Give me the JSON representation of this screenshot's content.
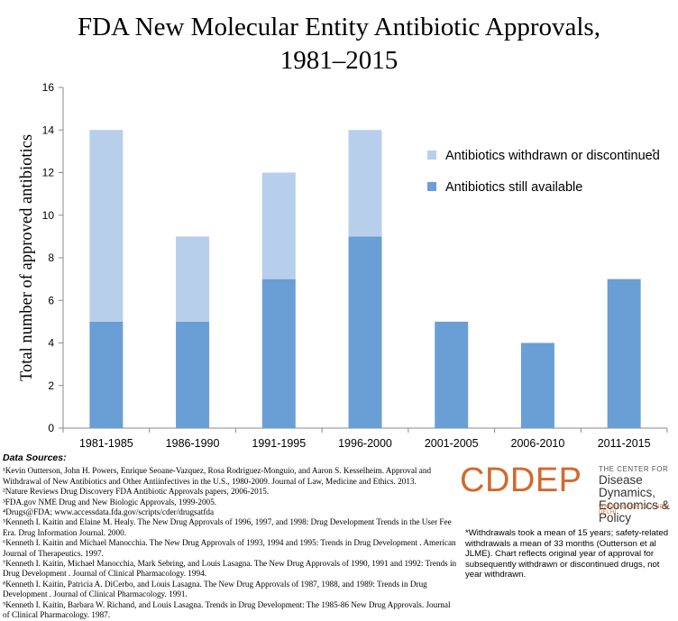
{
  "chart_data": {
    "type": "bar",
    "title": "FDA New Molecular Entity Antibiotic Approvals, 1981–2015",
    "title_line1": "FDA New Molecular Entity Antibiotic Approvals,",
    "title_line2": "1981–2015",
    "ylabel": "Total number of approved antibiotics",
    "xlabel": "",
    "ylim": [
      0,
      16
    ],
    "yticks": [
      "0",
      "2",
      "4",
      "6",
      "8",
      "10",
      "12",
      "14",
      "16"
    ],
    "categories": [
      "1981-1985",
      "1986-1990",
      "1991-1995",
      "1996-2000",
      "2001-2005",
      "2006-2010",
      "2011-2015"
    ],
    "stacked": true,
    "series": [
      {
        "name": "Antibiotics still available",
        "color": "#6a9fd6",
        "values": [
          5,
          5,
          7,
          9,
          5,
          4,
          7
        ]
      },
      {
        "name": "Antibiotics withdrawn or discontinued",
        "marker": "*",
        "color": "#b7cfea",
        "values": [
          9,
          4,
          5,
          5,
          0,
          0,
          0
        ]
      }
    ],
    "legend_position": "top-right",
    "grid": false
  },
  "sources": {
    "header": "Data Sources:",
    "items": [
      "¹Kevin Outterson, John H. Powers, Enrique Seoane-Vazquez, Rosa Rodriguez-Monguio, and Aaron S. Kesselheim. Approval and Withdrawal of New Antibiotics and Other Antiinfectives in the U.S., 1980-2009. Journal of Law, Medicine and Ethics. 2013.",
      "²Nature Reviews Drug Discovery FDA Antibiotic Approvals papers, 2006-2015.",
      "³FDA.gov NME Drug and New Biologic Approvals, 1999-2005.",
      "⁴Drugs@FDA; www.accessdata.fda.gov/scripts/cder/drugsatfda",
      "⁵Kenneth I. Kaitin and Elaine M. Healy. The New Drug Approvals of 1996, 1997, and 1998: Drug Development Trends in the User Fee Era. Drug Information Journal. 2000.",
      "⁶Kenneth I. Kaitin and Michael Manocchia. The New Drug Approvals of 1993, 1994 and 1995: Trends in Drug Development . American Journal of Therapeutics. 1997.",
      "⁷Kenneth I. Kaitin, Michael Manocchia, Mark Sebring, and Louis Lasagna. The New Drug Approvals of 1990, 1991 and 1992: Trends in Drug Development . Journal of Clinical Pharmacology. 1994.",
      "⁸Kenneth I. Kaitin, Patricia A. DiCerbo, and Louis Lasagna. The New Drug Approvals of 1987, 1988, and 1989: Trends in Drug Development . Journal of Clinical Pharmacology. 1991.",
      "⁹Kenneth I. Kaitin, Barbara W. Richand, and Louis Lasagna. Trends in Drug Development: The 1985-86 New Drug Approvals. Journal of Clinical Pharmacology. 1987."
    ]
  },
  "logo": {
    "brand": "CDDEP",
    "line1": "THE CENTER FOR",
    "line2": "Disease Dynamics, Economics & Policy",
    "line3": "WASHINGTON DC • NEW DELHI"
  },
  "footnote": "*Withdrawals took a mean of 15 years; safety-related withdrawals a mean of 33 months (Outterson et al JLME). Chart reflects original year of approval for subsequently withdrawn or discontinued drugs, not year withdrawn."
}
